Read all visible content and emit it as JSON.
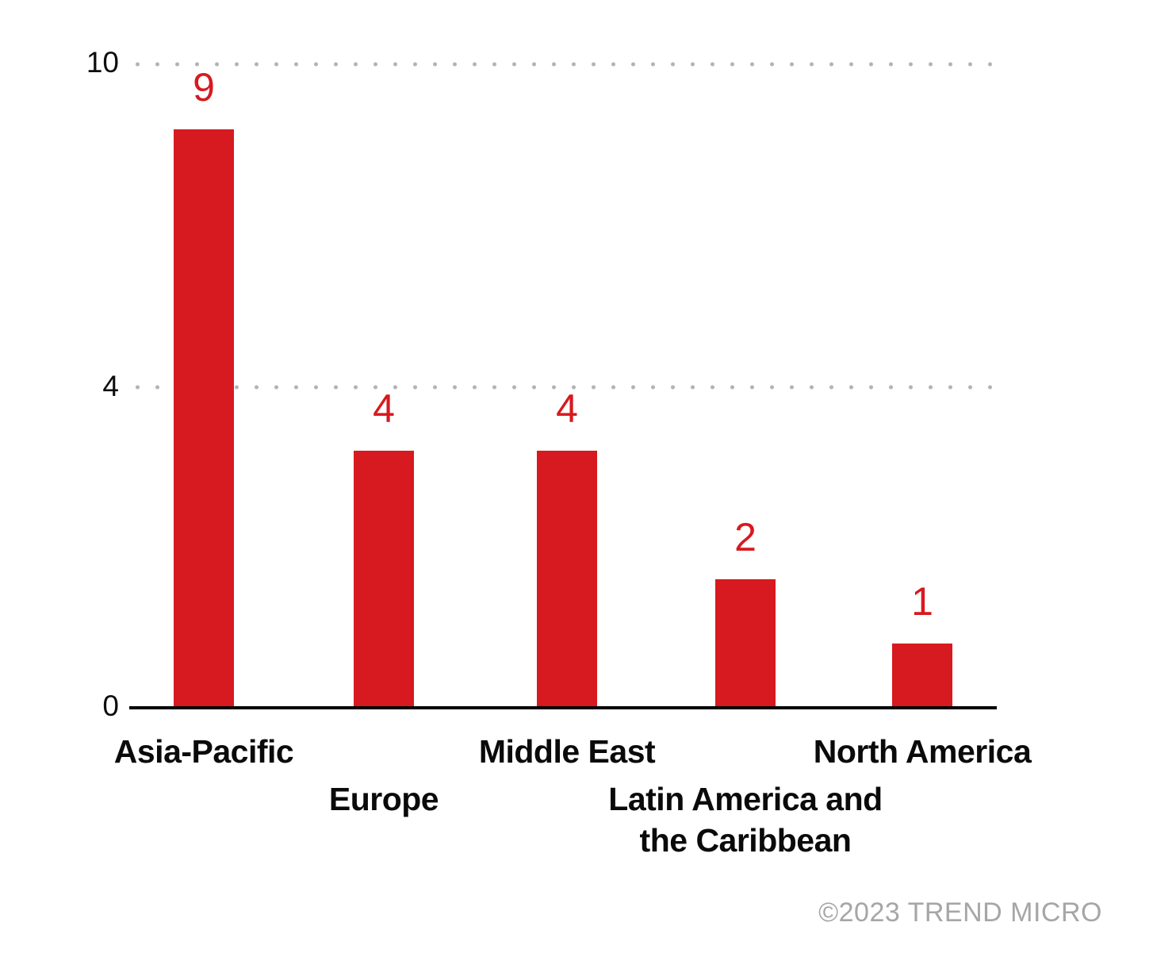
{
  "chart_data": {
    "type": "bar",
    "title": "",
    "categories": [
      "Asia-Pacific",
      "Europe",
      "Middle East",
      "Latin America and the Caribbean",
      "North America"
    ],
    "category_label_lines": [
      [
        "Asia-Pacific"
      ],
      [
        "Europe"
      ],
      [
        "Middle East"
      ],
      [
        "Latin America and",
        "the Caribbean"
      ],
      [
        "North America"
      ]
    ],
    "values": [
      9,
      4,
      4,
      2,
      1
    ],
    "xlabel": "",
    "ylabel": "",
    "ylim": [
      0,
      10
    ],
    "yticks": [
      "10",
      "4",
      "0"
    ],
    "grid": "horizontal-dotted",
    "legend": "none",
    "bar_color": "#d71920",
    "value_label_color": "#d71920",
    "axis_color": "#000000",
    "gridline_color": "#b3b3b3"
  },
  "footer": {
    "copyright": "©2023 TREND MICRO"
  }
}
